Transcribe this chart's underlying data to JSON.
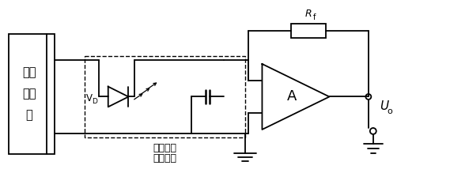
{
  "bg_color": "#ffffff",
  "line_color": "#000000",
  "box_label": "多谐\n振荡\n器",
  "sensor_label1": "发光发射",
  "sensor_label2": "接收探头",
  "vd_label": "V",
  "vd_sub": "D",
  "amp_label": "A",
  "rf_label": "R",
  "rf_sub": "f",
  "uo_label": "U",
  "uo_sub": "o",
  "figsize": [
    5.69,
    2.38
  ],
  "dpi": 100
}
